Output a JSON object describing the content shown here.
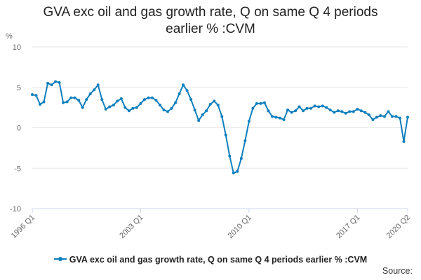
{
  "title": {
    "line1": "GVA exc oil and gas growth rate, Q on same Q 4 periods",
    "line2": "earlier % :CVM"
  },
  "source_label": "Source:",
  "colors": {
    "series": "#0f7fbd",
    "grid": "#e6e6e6",
    "axis": "#ccd6eb",
    "tick_text": "#666666"
  },
  "chart_data": {
    "type": "line",
    "title": "GVA exc oil and gas growth rate, Q on same Q 4 periods earlier % :CVM",
    "ylabel": "%",
    "ylim": [
      -10,
      10
    ],
    "yticks": [
      10,
      5,
      0,
      -5,
      -10
    ],
    "ytick_labels": [
      "10",
      "5",
      "0",
      "-5",
      "-10"
    ],
    "xtick_labels": [
      "1996 Q1",
      "2003 Q1",
      "2010 Q1",
      "2017 Q1",
      "2020 Q2"
    ],
    "xtick_index": [
      0,
      28,
      56,
      84,
      97
    ],
    "grid": true,
    "legend_position": "bottom",
    "series": [
      {
        "name": "GVA exc oil and gas growth rate, Q on same Q 4 periods earlier % :CVM",
        "start": "1996 Q1",
        "values": [
          4.1,
          4.0,
          2.9,
          3.2,
          5.5,
          5.3,
          5.7,
          5.6,
          3.1,
          3.2,
          3.7,
          3.7,
          3.4,
          2.5,
          3.5,
          4.2,
          4.7,
          5.3,
          3.5,
          2.3,
          2.6,
          2.8,
          3.3,
          3.6,
          2.5,
          2.1,
          2.4,
          2.5,
          3.0,
          3.5,
          3.7,
          3.7,
          3.4,
          2.8,
          2.2,
          2.0,
          2.4,
          3.1,
          4.2,
          5.3,
          4.6,
          3.5,
          2.2,
          0.9,
          1.6,
          2.1,
          2.9,
          3.3,
          2.8,
          1.4,
          -0.9,
          -3.5,
          -5.6,
          -5.4,
          -3.8,
          -1.6,
          0.8,
          2.4,
          3.0,
          3.0,
          3.1,
          2.1,
          1.4,
          1.3,
          1.2,
          1.0,
          2.2,
          1.9,
          2.1,
          2.6,
          2.1,
          2.4,
          2.4,
          2.7,
          2.6,
          2.7,
          2.5,
          2.2,
          1.9,
          2.1,
          2.0,
          1.8,
          2.0,
          2.0,
          2.3,
          2.1,
          1.9,
          1.6,
          1.0,
          1.3,
          1.5,
          1.4,
          2.0,
          1.4,
          1.4,
          1.2,
          -1.7,
          1.3
        ]
      }
    ]
  }
}
